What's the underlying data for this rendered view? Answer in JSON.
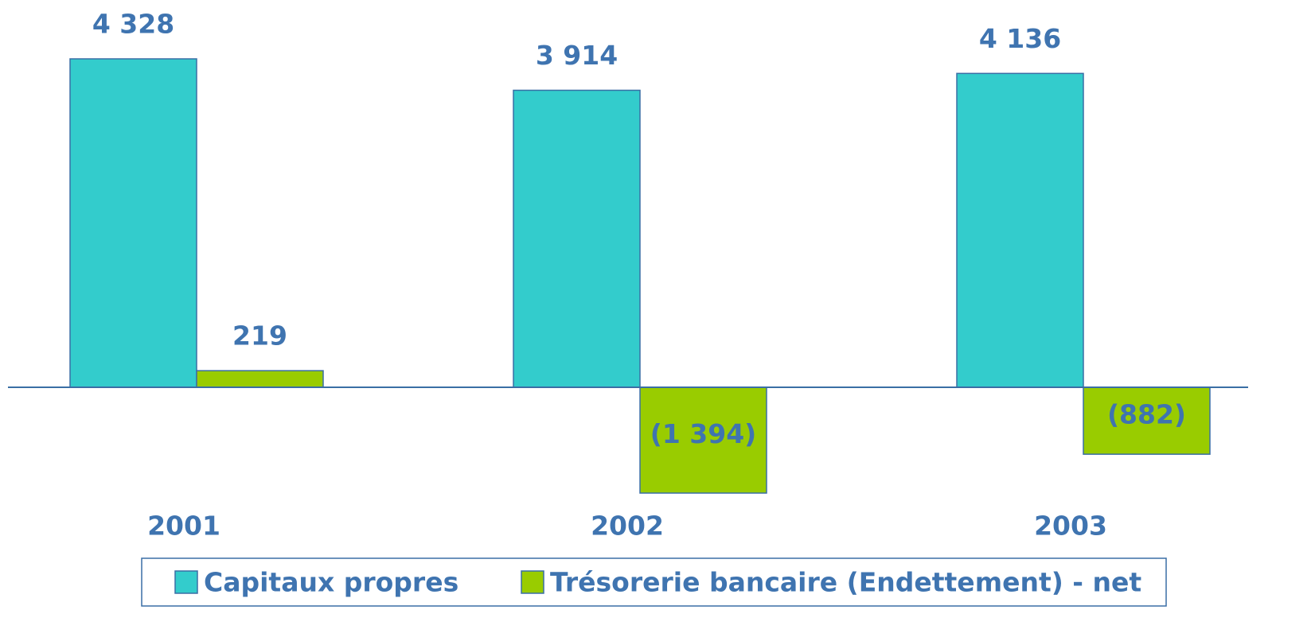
{
  "chart_data": {
    "type": "bar",
    "categories": [
      "2001",
      "2002",
      "2003"
    ],
    "series": [
      {
        "name": "Capitaux propres",
        "color": "#33CCCC",
        "values": [
          4328,
          3914,
          4136
        ],
        "value_labels": [
          "4 328",
          "3 914",
          "4 136"
        ]
      },
      {
        "name": "Trésorerie bancaire (Endettement) - net",
        "color": "#99CC00",
        "values": [
          219,
          -1394,
          -882
        ],
        "value_labels": [
          "219",
          "(1 394)",
          "(882)"
        ]
      }
    ],
    "legend": "bottom"
  }
}
